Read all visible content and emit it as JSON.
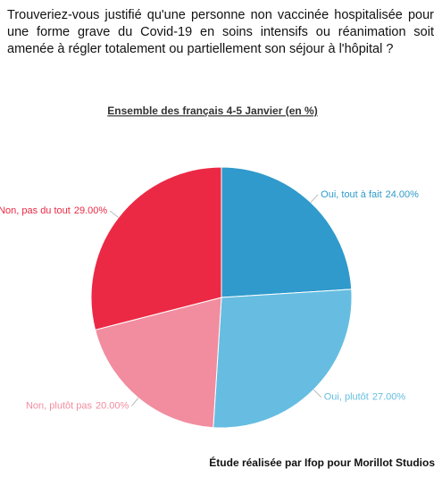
{
  "chart_data": {
    "type": "pie",
    "title": "Trouveriez-vous justifié qu'une personne non vaccinée hospitalisée pour une forme grave du Covid-19 en soins intensifs ou réanimation soit amenée à régler totalement ou partiellement son séjour à l'hôpital ?",
    "subtitle": "Ensemble des français 4-5 Janvier (en %)",
    "source": "Étude réalisée par Ifop pour Morillot Studios",
    "categories": [
      "Oui, tout à fait",
      "Oui, plutôt",
      "Non, plutôt pas",
      "Non, pas du tout"
    ],
    "values": [
      24,
      27,
      20,
      29
    ],
    "value_labels": [
      "24.00%",
      "27.00%",
      "20.00%",
      "29.00%"
    ],
    "colors": [
      "#2f9acb",
      "#66bde1",
      "#f28c9f",
      "#ec2944"
    ]
  }
}
